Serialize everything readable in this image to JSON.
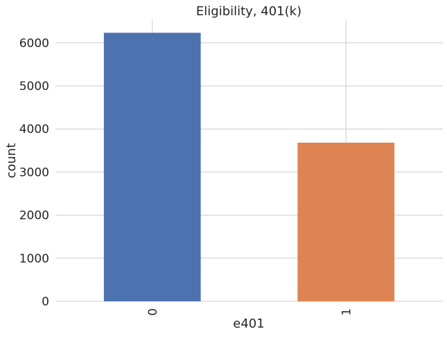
{
  "chart_data": {
    "type": "bar",
    "title": "Eligibility, 401(k)",
    "xlabel": "e401",
    "ylabel": "count",
    "categories": [
      "0",
      "1"
    ],
    "values": [
      6233,
      3682
    ],
    "series_colors": [
      "#4c72b0",
      "#dd8452"
    ],
    "ylim": [
      0,
      6544
    ],
    "yticks": [
      0,
      1000,
      2000,
      3000,
      4000,
      5000,
      6000
    ],
    "grid": true,
    "x_tick_rotation": "vertical"
  }
}
